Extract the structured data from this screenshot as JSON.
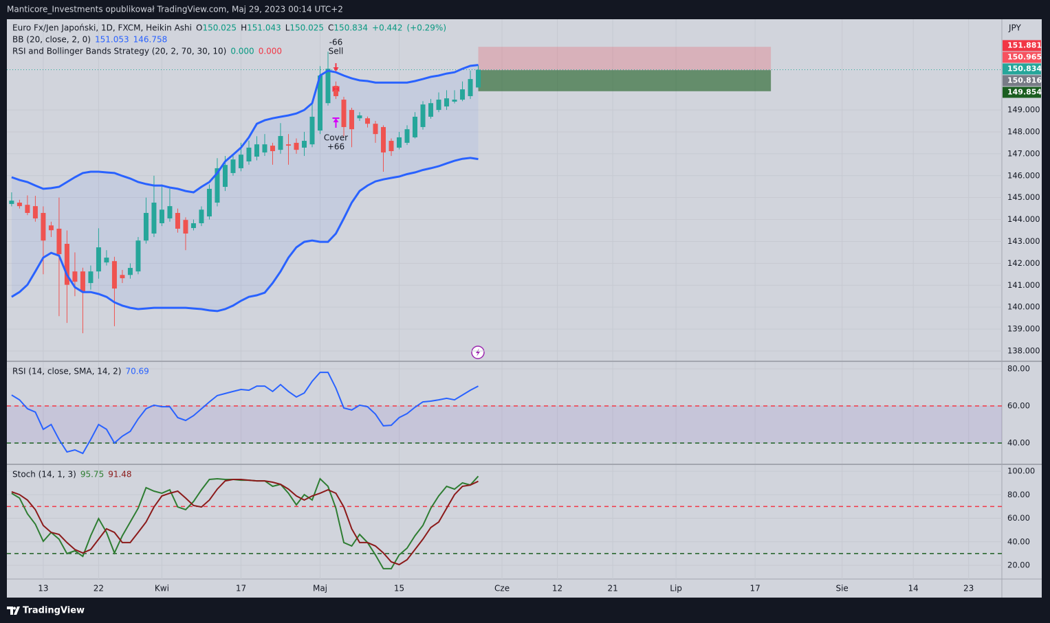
{
  "page": {
    "header": "Manticore_Investments opublikował TradingView.com, Maj 29, 2023 00:14 UTC+2",
    "brand": "TradingView"
  },
  "chart_data": [
    {
      "type": "candlestick",
      "title": "Euro Fx/Jen Japoński, 1D, FXCM, Heikin Ashi",
      "currency": "JPY",
      "ohlc_labels": [
        "O",
        "H",
        "L",
        "C"
      ],
      "change": {
        "value": 0.442,
        "label": "+0.442"
      },
      "change_pct": {
        "value": 0.29,
        "label": "(+0.29%)"
      },
      "up_color": "#26a69a",
      "down_color": "#ef5350",
      "open": [
        144.71,
        144.77,
        144.67,
        144.61,
        144.3,
        143.73,
        143.58,
        142.89,
        141.63,
        141.63,
        141.1,
        141.63,
        142.04,
        142.1,
        141.47,
        141.47,
        141.63,
        143.04,
        143.36,
        143.83,
        144.05,
        144.3,
        143.98,
        143.61,
        143.83,
        144.14,
        144.77,
        145.49,
        146.12,
        146.34,
        146.65,
        146.87,
        147.06,
        147.37,
        147.18,
        147.43,
        147.5,
        147.28,
        147.43,
        148.06,
        149.31,
        150.1,
        149.47,
        149.0,
        148.62,
        148.62,
        148.37,
        148.22,
        147.59,
        147.28,
        147.5,
        147.75,
        148.22,
        148.69,
        149.0,
        149.16,
        149.38,
        149.47,
        149.63,
        150.025
      ],
      "high": [
        145.24,
        144.9,
        145.1,
        145.08,
        144.6,
        143.9,
        145.0,
        143.5,
        142.5,
        141.8,
        141.9,
        143.6,
        142.6,
        142.3,
        141.7,
        142.0,
        143.2,
        145.0,
        146.0,
        145.6,
        145.4,
        144.5,
        144.1,
        144.0,
        144.6,
        145.6,
        146.8,
        146.9,
        147.0,
        147.5,
        147.6,
        147.8,
        147.9,
        147.5,
        148.4,
        147.9,
        147.7,
        148.0,
        149.4,
        151.0,
        151.66,
        150.3,
        149.6,
        149.1,
        148.9,
        148.7,
        148.5,
        148.3,
        147.7,
        148.0,
        148.3,
        148.9,
        149.4,
        149.5,
        149.8,
        149.9,
        149.9,
        150.3,
        150.8,
        151.043
      ],
      "low": [
        144.6,
        144.5,
        144.2,
        143.9,
        141.5,
        143.2,
        139.59,
        139.28,
        140.5,
        138.81,
        140.8,
        141.3,
        141.9,
        139.13,
        141.1,
        141.3,
        141.5,
        142.9,
        143.2,
        143.7,
        143.9,
        143.4,
        142.6,
        143.5,
        143.7,
        144.0,
        144.6,
        145.3,
        146.0,
        146.2,
        146.5,
        146.7,
        146.9,
        146.5,
        147.0,
        146.5,
        147.0,
        146.9,
        147.3,
        147.9,
        149.2,
        149.5,
        147.8,
        147.3,
        148.5,
        148.2,
        147.5,
        146.18,
        146.9,
        147.2,
        147.4,
        147.7,
        148.1,
        148.6,
        148.9,
        149.0,
        149.3,
        149.4,
        149.5,
        150.025
      ],
      "close": [
        144.86,
        144.61,
        144.3,
        144.05,
        143.04,
        143.51,
        142.42,
        141.02,
        141.16,
        140.69,
        141.63,
        142.73,
        142.26,
        140.85,
        141.32,
        141.79,
        143.04,
        144.3,
        144.77,
        144.45,
        144.61,
        143.58,
        143.36,
        143.83,
        144.45,
        145.4,
        146.34,
        146.49,
        146.74,
        146.96,
        147.28,
        147.43,
        147.43,
        147.12,
        147.81,
        147.37,
        147.18,
        147.59,
        148.69,
        150.57,
        150.88,
        149.63,
        148.22,
        148.12,
        148.75,
        148.37,
        147.9,
        147.06,
        147.12,
        147.75,
        148.12,
        148.69,
        149.25,
        149.31,
        149.47,
        149.53,
        149.47,
        149.94,
        150.41,
        150.834
      ],
      "bb": {
        "label": "BB (20, close, 2, 0)",
        "color": "#2962ff",
        "upper": [
          145.93,
          145.8,
          145.71,
          145.55,
          145.4,
          145.43,
          145.49,
          145.71,
          145.93,
          146.12,
          146.18,
          146.18,
          146.15,
          146.12,
          145.99,
          145.87,
          145.71,
          145.62,
          145.55,
          145.55,
          145.46,
          145.4,
          145.3,
          145.24,
          145.49,
          145.71,
          146.12,
          146.65,
          146.96,
          147.28,
          147.75,
          148.37,
          148.53,
          148.62,
          148.69,
          148.75,
          148.84,
          149.0,
          149.31,
          150.57,
          150.79,
          150.72,
          150.57,
          150.44,
          150.35,
          150.32,
          150.25,
          150.25,
          150.25,
          150.25,
          150.25,
          150.32,
          150.41,
          150.51,
          150.57,
          150.66,
          150.72,
          150.88,
          151.01,
          151.053
        ],
        "lower": [
          140.47,
          140.69,
          141.02,
          141.63,
          142.26,
          142.48,
          142.35,
          141.47,
          140.91,
          140.69,
          140.69,
          140.6,
          140.47,
          140.22,
          140.07,
          139.97,
          139.91,
          139.94,
          139.97,
          139.97,
          139.97,
          139.97,
          139.97,
          139.94,
          139.91,
          139.85,
          139.82,
          139.91,
          140.07,
          140.29,
          140.47,
          140.54,
          140.66,
          141.1,
          141.63,
          142.26,
          142.73,
          142.98,
          143.04,
          142.98,
          142.98,
          143.36,
          144.05,
          144.77,
          145.3,
          145.55,
          145.74,
          145.83,
          145.9,
          145.96,
          146.07,
          146.15,
          146.26,
          146.34,
          146.43,
          146.56,
          146.68,
          146.77,
          146.81,
          146.758
        ]
      },
      "strategy": {
        "label": "RSI and Bollinger Bands Strategy (20, 2, 70, 30, 10)",
        "values": [
          {
            "value": 0,
            "label": "0.000"
          },
          {
            "value": 0,
            "label": "0.000"
          }
        ],
        "colors": [
          "#089981",
          "#f23645"
        ],
        "signals": [
          {
            "x": 41,
            "label": "Sell",
            "amount": "-66",
            "color": "#f23645"
          },
          {
            "x": 41,
            "label": "Cover",
            "amount": "+66",
            "color": "#d500f9"
          }
        ]
      },
      "position": {
        "stop": 151.881,
        "entry": 150.816,
        "target": 149.854,
        "x_range": [
          59,
          96
        ],
        "stop_color": "#f23645",
        "entry_color": "#787b86",
        "target_color": "#1b5e20"
      },
      "price_labels": [
        {
          "value": 150.965,
          "color": "#f7525f"
        },
        {
          "value": 150.834,
          "color": "#26a69a"
        }
      ],
      "xlim": [
        -0.6,
        125.2
      ],
      "xticks": [
        {
          "value": 4,
          "label": "13"
        },
        {
          "value": 11,
          "label": "22"
        },
        {
          "value": 19,
          "label": "Kwi"
        },
        {
          "value": 29,
          "label": "17"
        },
        {
          "value": 39,
          "label": "Maj"
        },
        {
          "value": 49,
          "label": "15"
        },
        {
          "value": 62,
          "label": "Cze"
        },
        {
          "value": 69,
          "label": "12"
        },
        {
          "value": 76,
          "label": "21"
        },
        {
          "value": 84,
          "label": "Lip"
        },
        {
          "value": 94,
          "label": "17"
        },
        {
          "value": 105,
          "label": "Sie"
        },
        {
          "value": 114,
          "label": "14"
        },
        {
          "value": 121,
          "label": "23"
        }
      ],
      "ylim": [
        137.56,
        153.14
      ],
      "yticks": [
        {
          "value": 138,
          "label": "138.000"
        },
        {
          "value": 139,
          "label": "139.000"
        },
        {
          "value": 140,
          "label": "140.000"
        },
        {
          "value": 141,
          "label": "141.000"
        },
        {
          "value": 142,
          "label": "142.000"
        },
        {
          "value": 143,
          "label": "143.000"
        },
        {
          "value": 144,
          "label": "144.000"
        },
        {
          "value": 145,
          "label": "145.000"
        },
        {
          "value": 146,
          "label": "146.000"
        },
        {
          "value": 147,
          "label": "147.000"
        },
        {
          "value": 148,
          "label": "148.000"
        },
        {
          "value": 149,
          "label": "149.000"
        }
      ],
      "grid": true
    },
    {
      "type": "line",
      "title": "RSI (14, close, SMA, 14, 2)",
      "color": "#2962ff",
      "values": [
        65.9,
        63.3,
        58.5,
        56.7,
        47.4,
        50.0,
        41.9,
        35.2,
        36.3,
        34.4,
        41.9,
        50.0,
        47.4,
        40.0,
        43.7,
        46.3,
        53.0,
        58.5,
        60.4,
        59.6,
        59.6,
        53.7,
        52.2,
        54.8,
        58.5,
        62.2,
        65.6,
        66.7,
        67.8,
        68.9,
        68.5,
        70.7,
        70.7,
        67.8,
        71.5,
        67.8,
        64.8,
        67.0,
        73.3,
        78.1,
        78.1,
        69.6,
        58.9,
        57.8,
        60.4,
        59.6,
        55.6,
        49.3,
        49.6,
        53.7,
        55.9,
        59.3,
        62.2,
        62.6,
        63.3,
        64.1,
        63.3,
        65.9,
        68.5,
        70.69
      ],
      "bands": [
        {
          "value": 60,
          "color": "#f23645"
        },
        {
          "value": 40,
          "color": "#1b5e20"
        }
      ],
      "band_fill": "rgba(126,87,194,0.12)",
      "ylim": [
        28.9,
        83.7
      ],
      "yticks": [
        {
          "value": 40,
          "label": "40.00"
        },
        {
          "value": 60,
          "label": "60.00"
        },
        {
          "value": 80,
          "label": "80.00"
        }
      ],
      "grid": true
    },
    {
      "type": "line",
      "title": "Stoch (14, 1, 3)",
      "series": [
        {
          "color": "#2e7d32",
          "values": [
            81.3,
            77.2,
            63.8,
            55.0,
            40.4,
            48.0,
            42.2,
            29.9,
            32.3,
            27.6,
            45.1,
            59.7,
            48.0,
            30.5,
            45.1,
            56.8,
            68.5,
            86.0,
            83.1,
            81.3,
            84.2,
            69.6,
            67.3,
            74.3,
            84.2,
            93.0,
            93.6,
            93.0,
            93.0,
            92.4,
            92.4,
            91.8,
            91.8,
            87.2,
            88.9,
            81.3,
            71.4,
            80.1,
            75.5,
            93.6,
            87.2,
            68.5,
            39.3,
            36.4,
            46.3,
            39.3,
            28.8,
            17.1,
            17.1,
            28.8,
            34.6,
            45.1,
            53.9,
            68.5,
            79.0,
            87.2,
            84.8,
            90.1,
            88.3,
            95.75
          ]
        },
        {
          "color": "#8b1a1a",
          "values": [
            82.5,
            80.1,
            75.5,
            67.3,
            53.9,
            48.0,
            46.3,
            39.3,
            33.4,
            30.5,
            33.4,
            42.2,
            51.0,
            48.0,
            39.3,
            39.3,
            48.0,
            56.8,
            69.6,
            79.0,
            81.3,
            83.1,
            77.2,
            70.8,
            69.6,
            75.5,
            84.8,
            91.8,
            93.0,
            93.0,
            92.4,
            91.8,
            91.8,
            90.7,
            88.9,
            84.8,
            79.0,
            75.5,
            79.0,
            81.3,
            84.2,
            81.3,
            69.6,
            51.0,
            39.3,
            39.3,
            36.4,
            30.5,
            22.9,
            20.6,
            24.7,
            33.4,
            42.2,
            52.1,
            56.8,
            68.5,
            80.1,
            87.2,
            88.3,
            91.48
          ]
        }
      ],
      "bands": [
        {
          "value": 70,
          "color": "#f23645"
        },
        {
          "value": 30,
          "color": "#1b5e20"
        }
      ],
      "ylim": [
        8.3,
        105.3
      ],
      "yticks": [
        {
          "value": 20,
          "label": "20.00"
        },
        {
          "value": 40,
          "label": "40.00"
        },
        {
          "value": 60,
          "label": "60.00"
        },
        {
          "value": 80,
          "label": "80.00"
        },
        {
          "value": 100,
          "label": "100.00"
        }
      ],
      "grid": true
    }
  ]
}
